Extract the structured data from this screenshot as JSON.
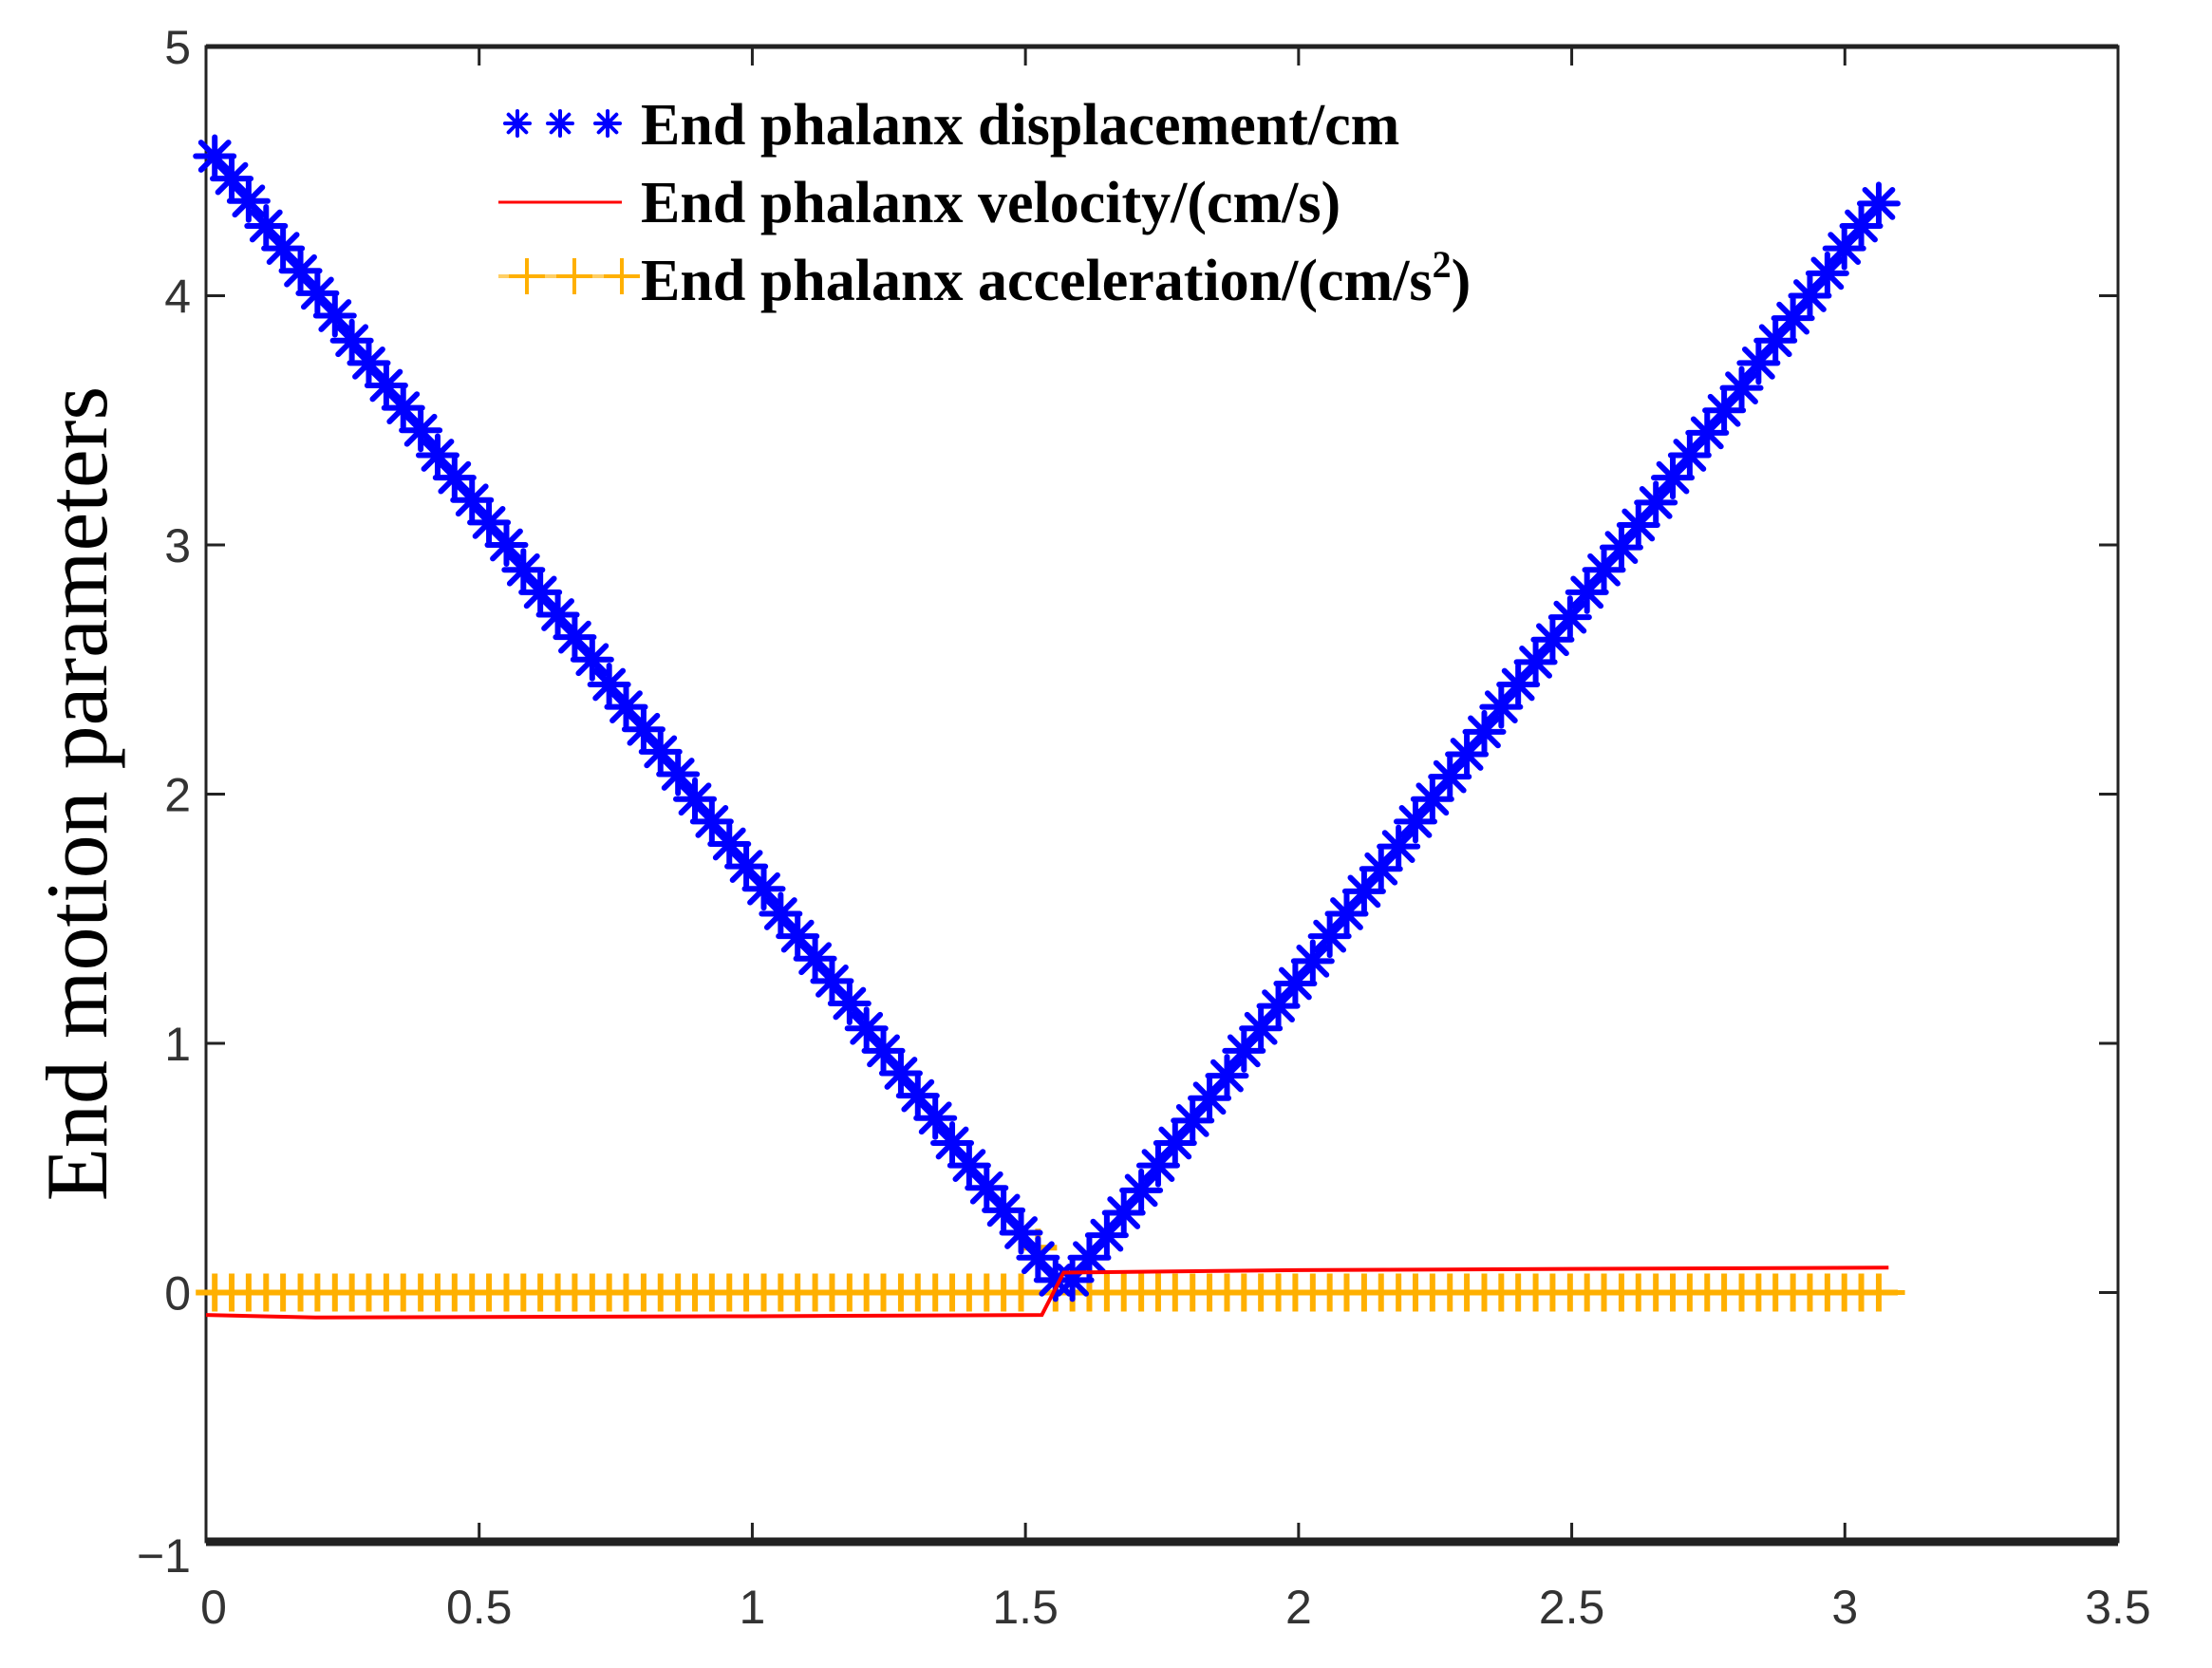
{
  "chart_data": {
    "type": "line",
    "title": "",
    "xlabel": "",
    "ylabel": "End motion parameters",
    "xlim": [
      0,
      3.5
    ],
    "ylim": [
      -1,
      5
    ],
    "xticks": [
      "0",
      "0.5",
      "1",
      "1.5",
      "2",
      "2.5",
      "3",
      "3.5"
    ],
    "yticks": [
      "−1",
      "0",
      "1",
      "2",
      "3",
      "4",
      "5"
    ],
    "grid": false,
    "legend_placement": "top-center",
    "x": [
      0.016,
      0.047,
      0.078,
      0.11,
      0.141,
      0.173,
      0.204,
      0.236,
      0.267,
      0.298,
      0.33,
      0.361,
      0.393,
      0.424,
      0.455,
      0.487,
      0.518,
      0.55,
      0.581,
      0.612,
      0.644,
      0.675,
      0.707,
      0.738,
      0.769,
      0.801,
      0.832,
      0.864,
      0.895,
      0.926,
      0.958,
      0.989,
      1.021,
      1.052,
      1.083,
      1.115,
      1.146,
      1.178,
      1.209,
      1.24,
      1.272,
      1.303,
      1.335,
      1.366,
      1.397,
      1.429,
      1.46,
      1.492,
      1.523,
      1.555,
      1.586,
      1.617,
      1.649,
      1.68,
      1.712,
      1.743,
      1.774,
      1.806,
      1.837,
      1.869,
      1.9,
      1.931,
      1.963,
      1.994,
      2.026,
      2.057,
      2.088,
      2.12,
      2.151,
      2.183,
      2.214,
      2.245,
      2.277,
      2.308,
      2.34,
      2.371,
      2.402,
      2.434,
      2.465,
      2.497,
      2.528,
      2.559,
      2.591,
      2.622,
      2.654,
      2.685,
      2.716,
      2.748,
      2.779,
      2.811,
      2.842,
      2.873,
      2.905,
      2.936,
      2.968,
      2.999,
      3.03,
      3.062
    ],
    "series": [
      {
        "name": "End phalanx displacement/cm",
        "color": "#0000ff",
        "marker": "asterisk",
        "values": [
          4.56,
          4.47,
          4.38,
          4.28,
          4.19,
          4.1,
          4.01,
          3.92,
          3.82,
          3.73,
          3.64,
          3.55,
          3.46,
          3.36,
          3.27,
          3.18,
          3.09,
          3.0,
          2.9,
          2.81,
          2.72,
          2.63,
          2.54,
          2.44,
          2.35,
          2.26,
          2.17,
          2.08,
          1.98,
          1.89,
          1.8,
          1.71,
          1.62,
          1.52,
          1.43,
          1.34,
          1.25,
          1.16,
          1.06,
          0.97,
          0.88,
          0.79,
          0.7,
          0.6,
          0.51,
          0.42,
          0.33,
          0.24,
          0.14,
          0.05,
          0.05,
          0.14,
          0.23,
          0.32,
          0.41,
          0.51,
          0.6,
          0.69,
          0.78,
          0.87,
          0.97,
          1.06,
          1.15,
          1.24,
          1.33,
          1.43,
          1.52,
          1.61,
          1.7,
          1.79,
          1.89,
          1.98,
          2.07,
          2.16,
          2.25,
          2.35,
          2.44,
          2.53,
          2.62,
          2.71,
          2.81,
          2.9,
          2.99,
          3.08,
          3.17,
          3.27,
          3.36,
          3.45,
          3.54,
          3.63,
          3.73,
          3.82,
          3.91,
          4.0,
          4.09,
          4.19,
          4.28,
          4.37
        ]
      },
      {
        "name": "End phalanx velocity/(cm/s)",
        "color": "#ff0000",
        "marker": "none",
        "points": [
          [
            0.0,
            -0.09
          ],
          [
            0.2,
            -0.1
          ],
          [
            1.0,
            -0.095
          ],
          [
            1.53,
            -0.09
          ],
          [
            1.57,
            0.08
          ],
          [
            2.0,
            0.09
          ],
          [
            3.08,
            0.1
          ]
        ]
      },
      {
        "name": "End phalanx acceleration/(cm/s",
        "name_superscript": "2",
        "name_suffix": ")",
        "color": "#ffb000",
        "marker": "plus",
        "values": [
          0,
          0,
          0,
          0,
          0,
          0,
          0,
          0,
          0,
          0,
          0,
          0,
          0,
          0,
          0,
          0,
          0,
          0,
          0,
          0,
          0,
          0,
          0,
          0,
          0,
          0,
          0,
          0,
          0,
          0,
          0,
          0,
          0,
          0,
          0,
          0,
          0,
          0,
          0,
          0,
          0,
          0,
          0,
          0,
          0,
          0,
          0,
          0,
          0.18,
          0,
          0,
          0,
          0,
          0,
          0,
          0,
          0,
          0,
          0,
          0,
          0,
          0,
          0,
          0,
          0,
          0,
          0,
          0,
          0,
          0,
          0,
          0,
          0,
          0,
          0,
          0,
          0,
          0,
          0,
          0,
          0,
          0,
          0,
          0,
          0,
          0,
          0,
          0,
          0,
          0,
          0,
          0,
          0,
          0,
          0,
          0,
          0,
          0
        ]
      }
    ]
  }
}
